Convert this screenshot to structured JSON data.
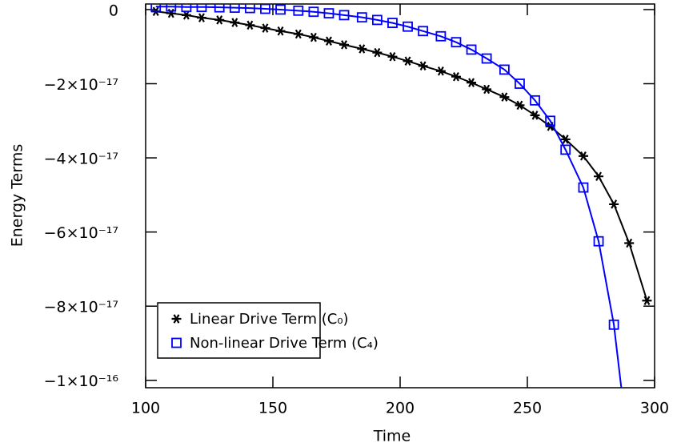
{
  "chart_data": {
    "type": "line",
    "xlabel": "Time",
    "ylabel": "Energy Terms",
    "x": [
      104,
      110,
      116,
      122,
      129,
      135,
      141,
      147,
      153,
      160,
      166,
      172,
      178,
      185,
      191,
      197,
      203,
      209,
      216,
      222,
      228,
      234,
      241,
      247,
      253,
      259,
      265,
      272,
      278,
      284,
      290,
      297
    ],
    "series": [
      {
        "name": "Linear Drive Term (C₀)",
        "color": "#000000",
        "marker": "asterisk",
        "values": [
          -5e-19,
          -1e-18,
          -1.5e-18,
          -2.2e-18,
          -2.8e-18,
          -3.5e-18,
          -4.2e-18,
          -5e-18,
          -5.8e-18,
          -6.6e-18,
          -7.5e-18,
          -8.5e-18,
          -9.5e-18,
          -1.06e-17,
          -1.16e-17,
          -1.27e-17,
          -1.39e-17,
          -1.52e-17,
          -1.66e-17,
          -1.81e-17,
          -1.97e-17,
          -2.15e-17,
          -2.36e-17,
          -2.58e-17,
          -2.85e-17,
          -3.15e-17,
          -3.5e-17,
          -3.95e-17,
          -4.5e-17,
          -5.25e-17,
          -6.3e-17,
          -7.85e-17
        ]
      },
      {
        "name": "Non-linear Drive Term (C₄)",
        "color": "#0000ff",
        "marker": "square",
        "values": [
          8e-19,
          8e-19,
          7e-19,
          7e-19,
          6e-19,
          5e-19,
          4e-19,
          2e-19,
          0,
          -3e-19,
          -6e-19,
          -1e-18,
          -1.5e-18,
          -2.1e-18,
          -2.8e-18,
          -3.6e-18,
          -4.6e-18,
          -5.8e-18,
          -7.2e-18,
          -8.8e-18,
          -1.08e-17,
          -1.32e-17,
          -1.62e-17,
          -2e-17,
          -2.45e-17,
          -3e-17,
          -3.78e-17,
          -4.8e-17,
          -6.25e-17,
          -8.5e-17,
          -1.2e-16,
          null
        ]
      }
    ],
    "xlim": [
      100,
      300
    ],
    "xticks": [
      100,
      150,
      200,
      250,
      300
    ],
    "ylim": [
      -1.02e-16,
      1.5e-18
    ],
    "yticks": [
      {
        "value": 0,
        "label": "0"
      },
      {
        "value": -2e-17,
        "label": "−2×10⁻¹⁷"
      },
      {
        "value": -4e-17,
        "label": "−4×10⁻¹⁷"
      },
      {
        "value": -6e-17,
        "label": "−6×10⁻¹⁷"
      },
      {
        "value": -8e-17,
        "label": "−8×10⁻¹⁷"
      },
      {
        "value": -1e-16,
        "label": "−1×10⁻¹⁶"
      }
    ],
    "legend": "lower left",
    "grid": false
  }
}
